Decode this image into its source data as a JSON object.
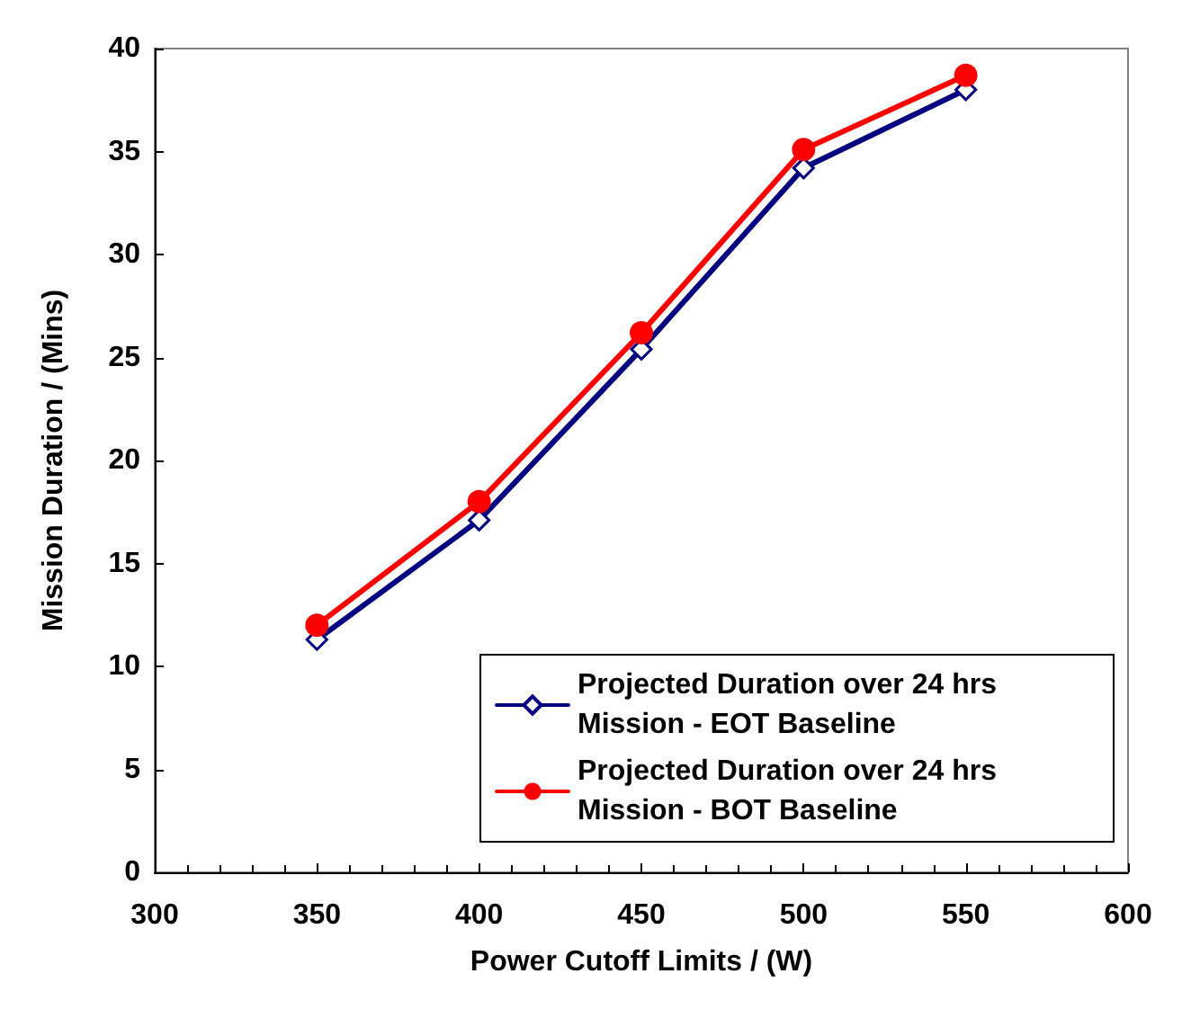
{
  "chart_data": {
    "type": "line",
    "xlabel": "Power Cutoff Limits / (W)",
    "ylabel": "Mission Duration / (Mins)",
    "x": [
      350,
      400,
      450,
      500,
      550
    ],
    "series": [
      {
        "name": "Projected Duration over 24 hrs Mission - EOT Baseline",
        "color": "#000080",
        "marker": "diamond",
        "values": [
          11.3,
          17.1,
          25.4,
          34.2,
          38.0
        ]
      },
      {
        "name": "Projected Duration over 24 hrs Mission - BOT Baseline",
        "color": "#ff0000",
        "marker": "circle",
        "values": [
          12.0,
          18.0,
          26.2,
          35.1,
          38.7
        ]
      }
    ],
    "xlim": [
      300,
      600
    ],
    "xticks": [
      300,
      350,
      400,
      450,
      500,
      550,
      600
    ],
    "ylim": [
      0,
      40
    ],
    "yticks": [
      0,
      5,
      10,
      15,
      20,
      25,
      30,
      35,
      40
    ],
    "grid": false,
    "legend": "bottom right",
    "line_style": "solid"
  }
}
